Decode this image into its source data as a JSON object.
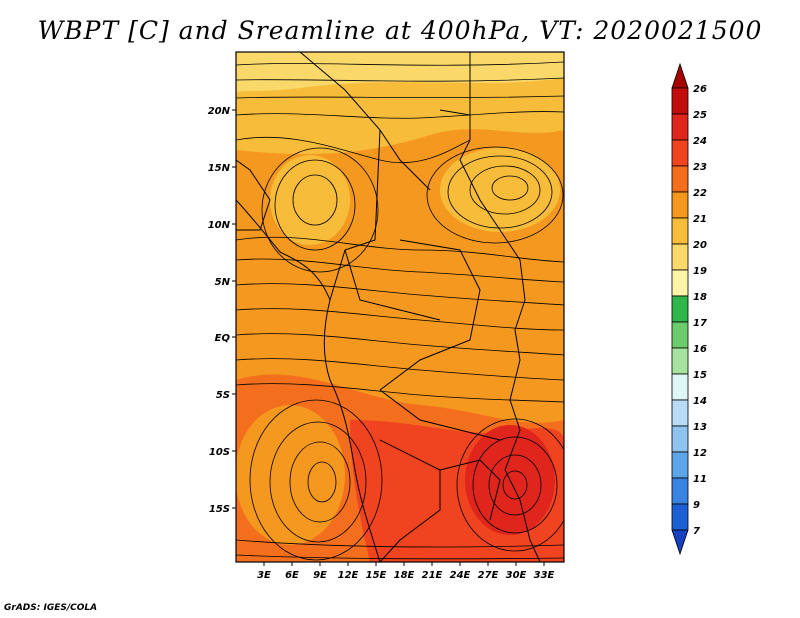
{
  "title": "WBPT [C] and Sreamline at 400hPa, VT: 2020021500",
  "footer": "GrADS: IGES/COLA",
  "map": {
    "lat_labels": [
      "20N",
      "15N",
      "10N",
      "5N",
      "EQ",
      "5S",
      "10S",
      "15S"
    ],
    "lon_labels": [
      "3E",
      "6E",
      "9E",
      "12E",
      "15E",
      "18E",
      "21E",
      "24E",
      "27E",
      "30E",
      "33E"
    ]
  },
  "colorbar": {
    "labels": [
      "26",
      "25",
      "24",
      "23",
      "22",
      "21",
      "20",
      "19",
      "18",
      "17",
      "16",
      "15",
      "14",
      "13",
      "12",
      "11",
      "9",
      "7"
    ],
    "colors": [
      "#a50000",
      "#c30d0d",
      "#e0251c",
      "#f0431f",
      "#f36e1d",
      "#f5981f",
      "#f7bd3a",
      "#fad96a",
      "#fdf3a9",
      "#2fb54a",
      "#6ccb6a",
      "#a6e2a0",
      "#dff6f6",
      "#b8dcf6",
      "#8ec2ef",
      "#5ca5e8",
      "#3783df",
      "#1c5fd2",
      "#1740c0"
    ]
  }
}
